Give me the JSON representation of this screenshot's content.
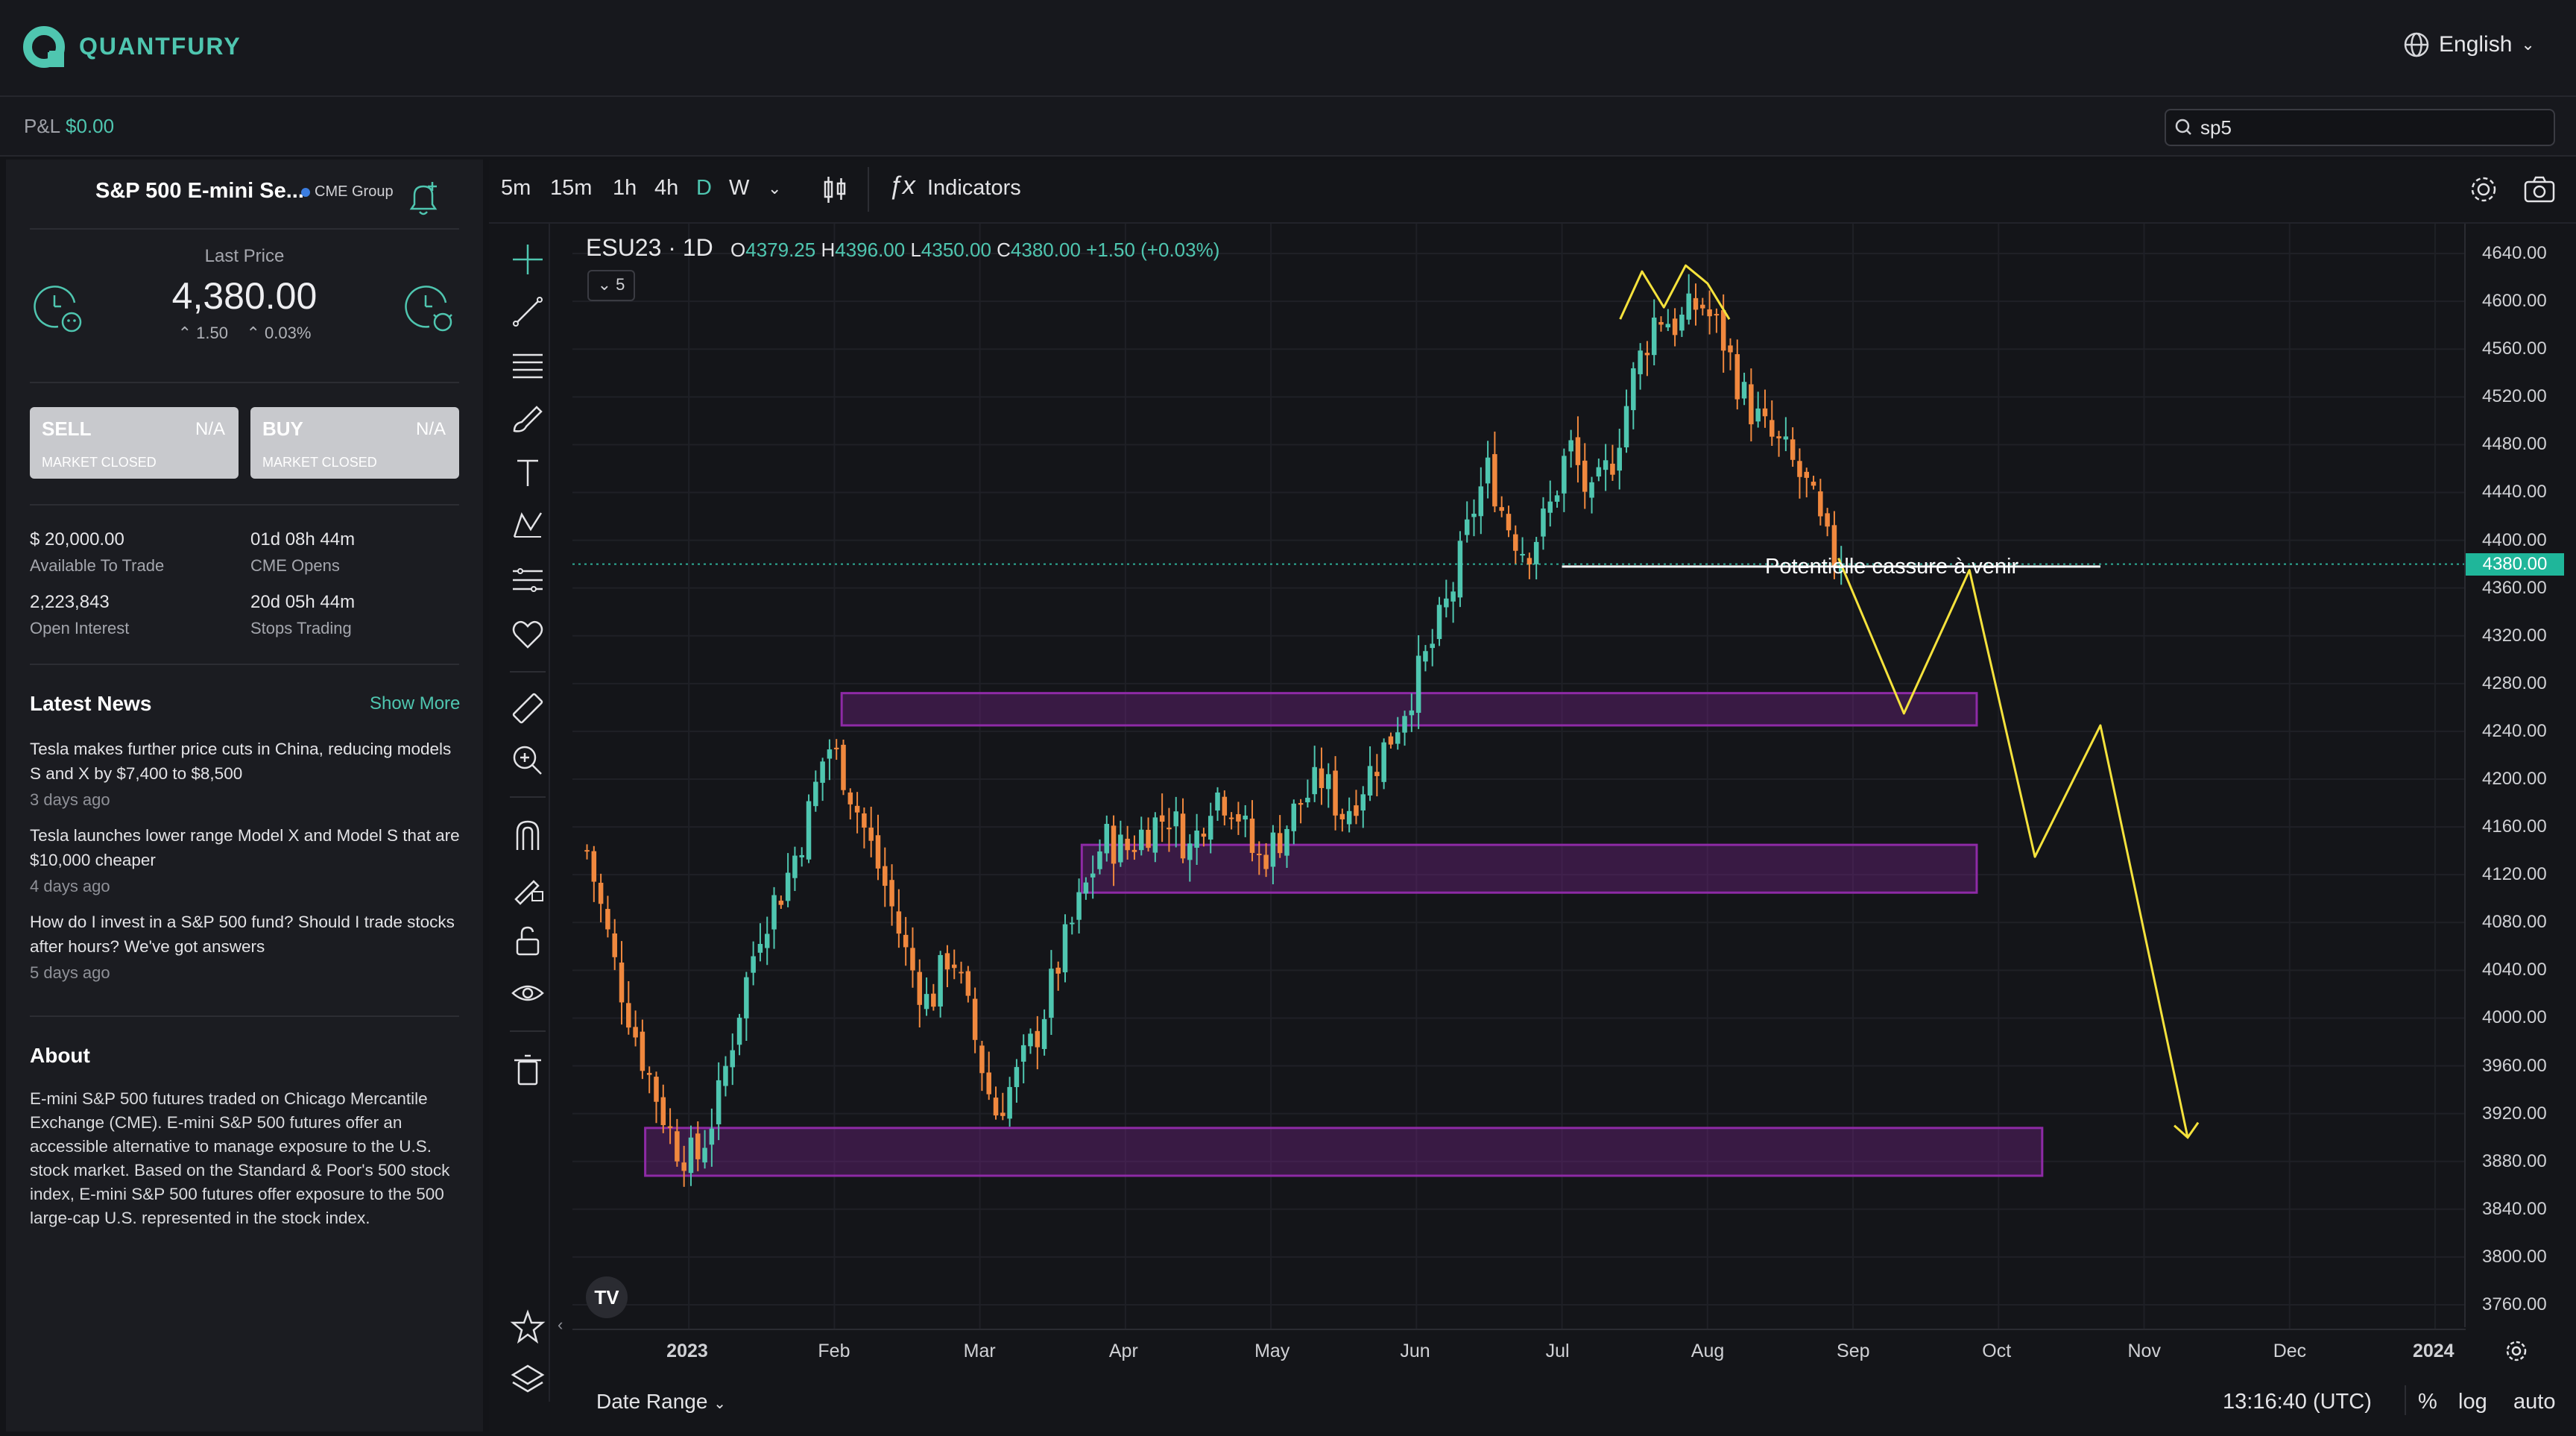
{
  "app": {
    "brand": "QUANTFURY",
    "language": "English"
  },
  "header": {
    "pnl_label": "P&L",
    "pnl_value": "$0.00",
    "search_value": "sp5"
  },
  "instrument": {
    "name": "S&P 500 E-mini Se...",
    "exchange": "CME Group",
    "last_price_label": "Last Price",
    "last_price": "4,380.00",
    "change_abs": "1.50",
    "change_pct": "0.03%"
  },
  "trade": {
    "sell_label": "SELL",
    "sell_value": "N/A",
    "sell_status": "MARKET CLOSED",
    "buy_label": "BUY",
    "buy_value": "N/A",
    "buy_status": "MARKET CLOSED"
  },
  "stats": {
    "available_value": "$ 20,000.00",
    "available_label": "Available To Trade",
    "cme_opens_value": "01d 08h 44m",
    "cme_opens_label": "CME Opens",
    "open_interest_value": "2,223,843",
    "open_interest_label": "Open Interest",
    "stops_value": "20d 05h 44m",
    "stops_label": "Stops Trading"
  },
  "news": {
    "title": "Latest News",
    "show_more": "Show More",
    "items": [
      {
        "headline": "Tesla makes further price cuts in China, reducing models S and X by $7,400 to $8,500",
        "age": "3 days ago"
      },
      {
        "headline": "Tesla launches lower range Model X and Model S that are $10,000 cheaper",
        "age": "4 days ago"
      },
      {
        "headline": "How do I invest in a S&P 500 fund? Should I trade stocks after hours? We've got answers",
        "age": "5 days ago"
      }
    ]
  },
  "about": {
    "title": "About",
    "text": "E-mini S&P 500 futures traded on Chicago Mercantile Exchange (CME). E-mini S&P 500 futures offer an accessible alternative to manage exposure to the U.S. stock market. Based on the Standard & Poor's 500 stock index, E-mini S&P 500 futures offer exposure to the 500 large-cap U.S. represented in the stock index."
  },
  "toolbar": {
    "timeframes": [
      "5m",
      "15m",
      "1h",
      "4h",
      "D",
      "W"
    ],
    "active_timeframe": "D",
    "indicators_label": "Indicators"
  },
  "legend": {
    "symbol": "ESU23 · 1D",
    "o_label": "O",
    "o": "4379.25",
    "h_label": "H",
    "h": "4396.00",
    "l_label": "L",
    "l": "4350.00",
    "c_label": "C",
    "c": "4380.00",
    "change": "+1.50 (+0.03%)",
    "collapse_count": "5"
  },
  "annotation_text": "Potentielle cassure à venir",
  "footer": {
    "date_range": "Date Range",
    "clock": "13:16:40 (UTC)",
    "percent": "%",
    "log": "log",
    "auto": "auto"
  },
  "colors": {
    "accent": "#4fc6b0",
    "up": "#4fc6b0",
    "down": "#f0883e",
    "zone": "#8e2aa6",
    "drawing": "#f5e23c",
    "background": "#131418"
  },
  "chart_data": {
    "type": "candlestick",
    "symbol": "ESU23",
    "interval": "1D",
    "y_ticks": [
      4640,
      4600,
      4560,
      4520,
      4480,
      4440,
      4400,
      4360,
      4320,
      4280,
      4240,
      4200,
      4160,
      4120,
      4080,
      4040,
      4000,
      3960,
      3920,
      3880,
      3840,
      3800,
      3760
    ],
    "y_tick_labels": [
      "4640.00",
      "4600.00",
      "4560.00",
      "4520.00",
      "4480.00",
      "4440.00",
      "4400.00",
      "4360.00",
      "4320.00",
      "4280.00",
      "4240.00",
      "4200.00",
      "4160.00",
      "4120.00",
      "4080.00",
      "4040.00",
      "4000.00",
      "3960.00",
      "3920.00",
      "3880.00",
      "3840.00",
      "3800.00",
      "3760.00"
    ],
    "ylim": [
      3740,
      4665
    ],
    "x_ticks": [
      "2023",
      "Feb",
      "Mar",
      "Apr",
      "May",
      "Jun",
      "Jul",
      "Aug",
      "Sep",
      "Oct",
      "Nov",
      "Dec",
      "2024"
    ],
    "x_tick_months": [
      0,
      1,
      2,
      3,
      4,
      5,
      6,
      7,
      8,
      9,
      10,
      11,
      12
    ],
    "xlim_months": [
      -0.8,
      12.2
    ],
    "current_price": 4380,
    "current_price_label": "4380.00",
    "path_points": [
      [
        -0.7,
        4140
      ],
      [
        -0.5,
        4040
      ],
      [
        -0.3,
        3960
      ],
      [
        -0.1,
        3895
      ],
      [
        0.05,
        3880
      ],
      [
        0.2,
        3930
      ],
      [
        0.35,
        4010
      ],
      [
        0.5,
        4080
      ],
      [
        0.65,
        4110
      ],
      [
        0.8,
        4160
      ],
      [
        0.95,
        4230
      ],
      [
        1.05,
        4210
      ],
      [
        1.2,
        4160
      ],
      [
        1.35,
        4110
      ],
      [
        1.5,
        4050
      ],
      [
        1.65,
        4010
      ],
      [
        1.8,
        4060
      ],
      [
        1.95,
        3990
      ],
      [
        2.1,
        3920
      ],
      [
        2.25,
        3950
      ],
      [
        2.4,
        3990
      ],
      [
        2.55,
        4050
      ],
      [
        2.7,
        4100
      ],
      [
        2.85,
        4150
      ],
      [
        3.0,
        4140
      ],
      [
        3.15,
        4160
      ],
      [
        3.3,
        4170
      ],
      [
        3.45,
        4140
      ],
      [
        3.6,
        4190
      ],
      [
        3.75,
        4180
      ],
      [
        3.9,
        4130
      ],
      [
        4.05,
        4150
      ],
      [
        4.2,
        4180
      ],
      [
        4.35,
        4200
      ],
      [
        4.5,
        4170
      ],
      [
        4.65,
        4200
      ],
      [
        4.8,
        4230
      ],
      [
        4.95,
        4270
      ],
      [
        5.1,
        4310
      ],
      [
        5.25,
        4360
      ],
      [
        5.4,
        4430
      ],
      [
        5.5,
        4460
      ],
      [
        5.6,
        4420
      ],
      [
        5.75,
        4390
      ],
      [
        5.9,
        4420
      ],
      [
        6.05,
        4480
      ],
      [
        6.2,
        4430
      ],
      [
        6.35,
        4470
      ],
      [
        6.5,
        4540
      ],
      [
        6.65,
        4590
      ],
      [
        6.8,
        4580
      ],
      [
        6.95,
        4600
      ],
      [
        7.1,
        4570
      ],
      [
        7.25,
        4520
      ],
      [
        7.4,
        4490
      ],
      [
        7.55,
        4470
      ],
      [
        7.7,
        4440
      ],
      [
        7.8,
        4400
      ],
      [
        7.9,
        4380
      ]
    ],
    "zones": [
      {
        "from_month": 1.05,
        "to_month": 8.85,
        "low": 4245,
        "high": 4272
      },
      {
        "from_month": 2.7,
        "to_month": 8.85,
        "low": 4105,
        "high": 4145
      },
      {
        "from_month": -0.3,
        "to_month": 9.3,
        "low": 3868,
        "high": 3908
      }
    ],
    "support_line": {
      "from_month": 6.0,
      "to_month": 9.7,
      "price": 4378
    },
    "head_shoulders": [
      [
        6.4,
        4585
      ],
      [
        6.55,
        4625
      ],
      [
        6.7,
        4595
      ],
      [
        6.85,
        4630
      ],
      [
        7.0,
        4615
      ],
      [
        7.15,
        4585
      ]
    ],
    "projection": [
      [
        7.9,
        4385
      ],
      [
        8.35,
        4255
      ],
      [
        8.8,
        4375
      ],
      [
        9.25,
        4135
      ],
      [
        9.7,
        4245
      ],
      [
        10.3,
        3900
      ]
    ]
  }
}
